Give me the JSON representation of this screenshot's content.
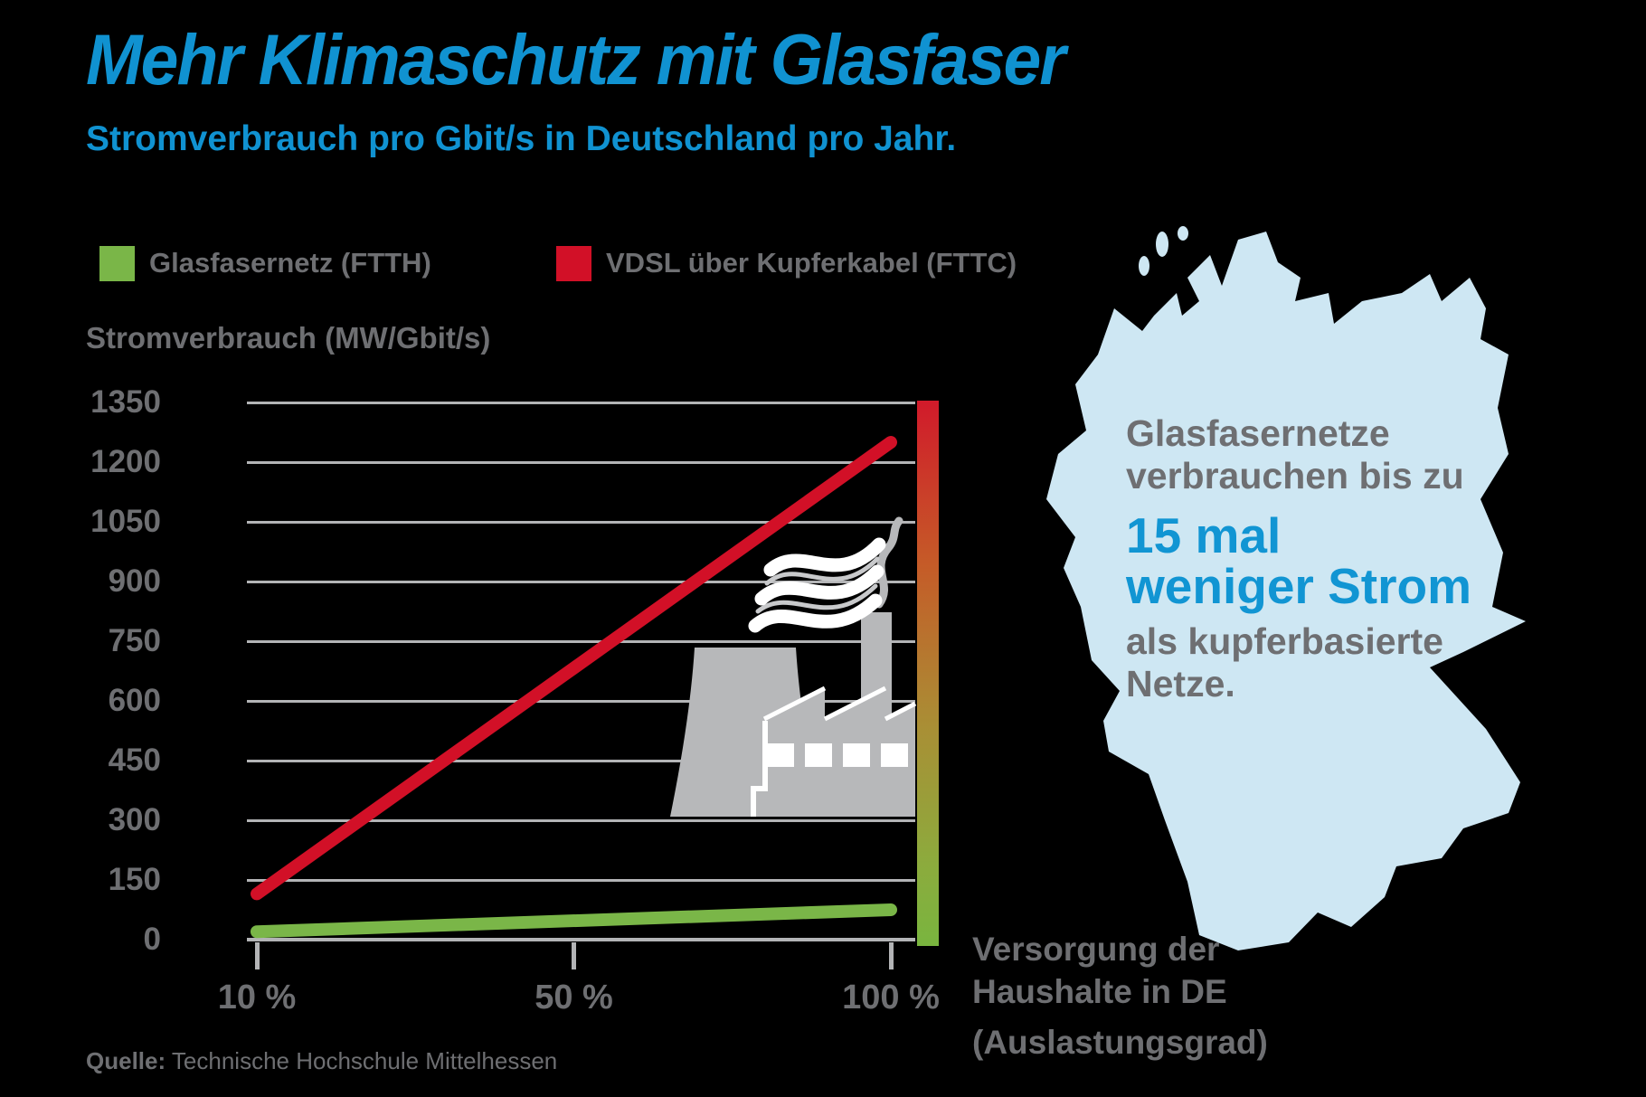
{
  "title": "Mehr Klimaschutz mit Glasfaser",
  "subtitle": "Stromverbrauch pro Gbit/s in Deutschland pro Jahr.",
  "legend": [
    {
      "label": "Glasfasernetz (FTTH)",
      "color": "#7ab648"
    },
    {
      "label": "VDSL über Kupferkabel (FTTC)",
      "color": "#d21027"
    }
  ],
  "y_axis_title": "Stromverbrauch (MW/Gbit/s)",
  "x_axis_note": {
    "line1": "Versorgung der",
    "line2": "Haushalte in DE",
    "line3": "(Auslastungsgrad)"
  },
  "map_callout": {
    "line1": "Glasfasernetze",
    "line2": "verbrauchen bis zu",
    "highlight1": "15 mal",
    "highlight2": "weniger Strom",
    "line3": "als kupferbasierte",
    "line4": "Netze."
  },
  "source": {
    "label": "Quelle:",
    "text": "Technische Hochschule Mittelhessen"
  },
  "colors": {
    "accent_blue": "#1092d1",
    "highlight_blue": "#1195d3",
    "text_gray": "#6e6f72",
    "grid_gray": "#b3b4b6",
    "map_blue": "#cee7f3",
    "factory_gray": "#b7b8ba",
    "fiber_green": "#7ab648",
    "copper_red": "#d21027"
  },
  "chart_data": {
    "type": "line",
    "title": "Stromverbrauch pro Gbit/s in Deutschland pro Jahr",
    "xlabel": "Versorgung der Haushalte in DE (Auslastungsgrad)",
    "ylabel": "Stromverbrauch (MW/Gbit/s)",
    "x_tick_labels": [
      "10 %",
      "50 %",
      "100 %"
    ],
    "x_percent": [
      10,
      100
    ],
    "y_ticks": [
      0,
      150,
      300,
      450,
      600,
      750,
      900,
      1050,
      1200,
      1350
    ],
    "ylim": [
      0,
      1350
    ],
    "grid": true,
    "legend_position": "top-left",
    "series": [
      {
        "name": "Glasfasernetz (FTTH)",
        "color": "#7ab648",
        "values": [
          20,
          75
        ]
      },
      {
        "name": "VDSL über Kupferkabel (FTTC)",
        "color": "#d21027",
        "values": [
          115,
          1250
        ]
      }
    ],
    "annotation": "Glasfasernetze verbrauchen bis zu 15 mal weniger Strom als kupferbasierte Netze.",
    "gradient_bar": {
      "position": "right edge of plot, 0 to 1350",
      "top_color": "#d21027",
      "bottom_color": "#7ab648",
      "stops": [
        {
          "offset": 0,
          "color": "#d11a2a"
        },
        {
          "offset": 0.3,
          "color": "#c55b28"
        },
        {
          "offset": 0.6,
          "color": "#a98f35"
        },
        {
          "offset": 0.85,
          "color": "#8cab3d"
        },
        {
          "offset": 1,
          "color": "#79b53f"
        }
      ]
    }
  }
}
